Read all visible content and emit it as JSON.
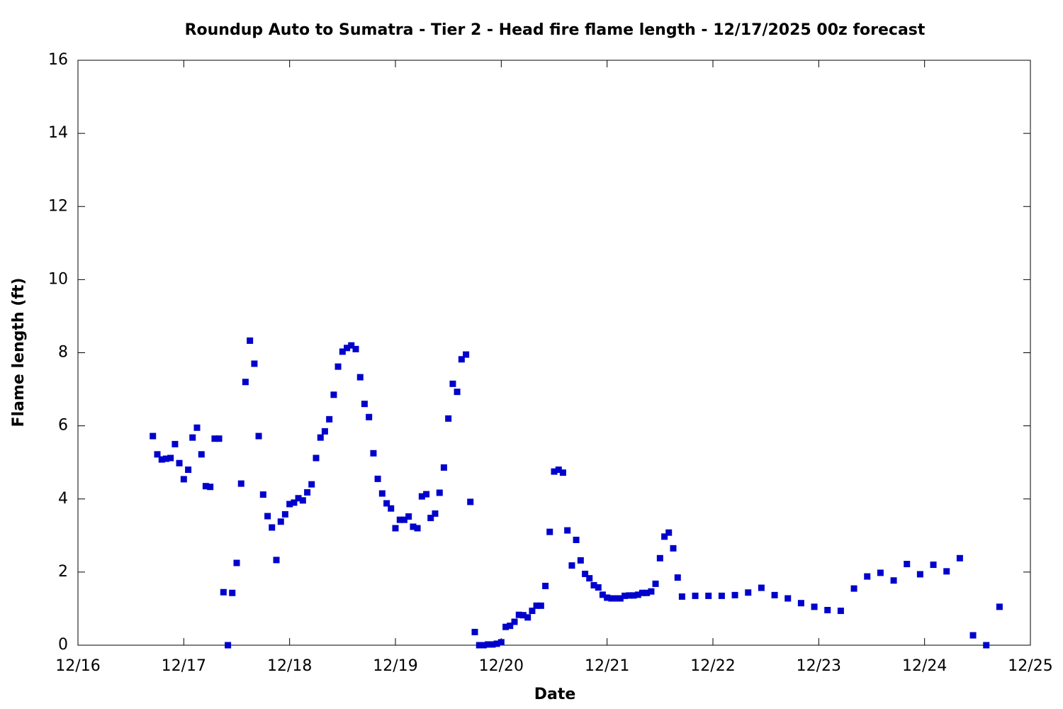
{
  "chart_data": {
    "type": "scatter",
    "title": "Roundup Auto to Sumatra - Tier 2 - Head fire flame length - 12/17/2025 00z forecast",
    "x_label": "Date",
    "y_label": "Flame length (ft)",
    "xlim": [
      16,
      25
    ],
    "xticks": [
      {
        "value": 16,
        "label": "12/16"
      },
      {
        "value": 17,
        "label": "12/17"
      },
      {
        "value": 18,
        "label": "12/18"
      },
      {
        "value": 19,
        "label": "12/19"
      },
      {
        "value": 20,
        "label": "12/20"
      },
      {
        "value": 21,
        "label": "12/21"
      },
      {
        "value": 22,
        "label": "12/22"
      },
      {
        "value": 23,
        "label": "12/23"
      },
      {
        "value": 24,
        "label": "12/24"
      },
      {
        "value": 25,
        "label": "12/25"
      }
    ],
    "ylim": [
      0,
      16
    ],
    "yticks": [
      0,
      2,
      4,
      6,
      8,
      10,
      12,
      14,
      16
    ],
    "series": [
      {
        "color": "#0000cc",
        "x": [
          16.708,
          16.75,
          16.792,
          16.833,
          16.875,
          16.917,
          16.958,
          17,
          17.042,
          17.083,
          17.125,
          17.167,
          17.208,
          17.25,
          17.292,
          17.333,
          17.375,
          17.417,
          17.458,
          17.5,
          17.542,
          17.583,
          17.625,
          17.667,
          17.708,
          17.75,
          17.792,
          17.833,
          17.875,
          17.917,
          17.958,
          18,
          18.042,
          18.083,
          18.125,
          18.167,
          18.208,
          18.25,
          18.292,
          18.333,
          18.375,
          18.417,
          18.458,
          18.5,
          18.542,
          18.583,
          18.625,
          18.667,
          18.708,
          18.75,
          18.792,
          18.833,
          18.875,
          18.917,
          18.958,
          19,
          19.042,
          19.083,
          19.125,
          19.167,
          19.208,
          19.25,
          19.292,
          19.333,
          19.375,
          19.417,
          19.458,
          19.5,
          19.542,
          19.583,
          19.625,
          19.667,
          19.708,
          19.75,
          19.792,
          19.833,
          19.875,
          19.917,
          19.958,
          20,
          20.042,
          20.083,
          20.125,
          20.167,
          20.208,
          20.25,
          20.292,
          20.333,
          20.375,
          20.417,
          20.458,
          20.5,
          20.542,
          20.583,
          20.625,
          20.667,
          20.708,
          20.75,
          20.792,
          20.833,
          20.875,
          20.917,
          20.958,
          21,
          21.042,
          21.083,
          21.125,
          21.167,
          21.208,
          21.25,
          21.292,
          21.333,
          21.375,
          21.417,
          21.458,
          21.5,
          21.542,
          21.583,
          21.625,
          21.667,
          21.708,
          21.833,
          21.958,
          22.083,
          22.208,
          22.333,
          22.458,
          22.583,
          22.708,
          22.833,
          22.958,
          23.083,
          23.208,
          23.333,
          23.458,
          23.583,
          23.708,
          23.833,
          23.958,
          24.083,
          24.208,
          24.333,
          24.458,
          24.583,
          24.708
        ],
        "values": [
          5.72,
          5.22,
          5.08,
          5.1,
          5.12,
          5.5,
          4.98,
          4.54,
          4.8,
          5.68,
          5.95,
          5.22,
          4.35,
          4.33,
          5.65,
          5.65,
          1.45,
          0,
          1.43,
          2.25,
          4.42,
          7.2,
          8.33,
          7.7,
          5.72,
          4.12,
          3.53,
          3.22,
          2.33,
          3.38,
          3.58,
          3.86,
          3.9,
          4.02,
          3.96,
          4.18,
          4.4,
          5.12,
          5.68,
          5.85,
          6.18,
          6.85,
          7.62,
          8.03,
          8.13,
          8.2,
          8.1,
          7.33,
          6.6,
          6.24,
          5.25,
          4.55,
          4.15,
          3.88,
          3.74,
          3.2,
          3.43,
          3.43,
          3.52,
          3.24,
          3.2,
          4.07,
          4.13,
          3.48,
          3.6,
          4.17,
          4.86,
          6.2,
          7.15,
          6.93,
          7.82,
          7.95,
          3.92,
          0.36,
          0,
          0,
          0.02,
          0.02,
          0.04,
          0.08,
          0.5,
          0.53,
          0.64,
          0.83,
          0.82,
          0.76,
          0.94,
          1.08,
          1.08,
          1.62,
          3.1,
          4.75,
          4.8,
          4.72,
          3.14,
          2.18,
          2.88,
          2.32,
          1.95,
          1.83,
          1.64,
          1.58,
          1.38,
          1.3,
          1.28,
          1.28,
          1.28,
          1.35,
          1.36,
          1.36,
          1.38,
          1.43,
          1.43,
          1.47,
          1.68,
          2.38,
          2.97,
          3.08,
          2.65,
          1.85,
          1.33,
          1.35,
          1.35,
          1.35,
          1.37,
          1.44,
          1.57,
          1.37,
          1.28,
          1.15,
          1.05,
          0.96,
          0.94,
          1.55,
          1.88,
          1.98,
          1.77,
          2.22,
          1.94,
          2.2,
          2.02,
          2.38,
          0.27,
          0,
          1.05
        ]
      }
    ]
  }
}
